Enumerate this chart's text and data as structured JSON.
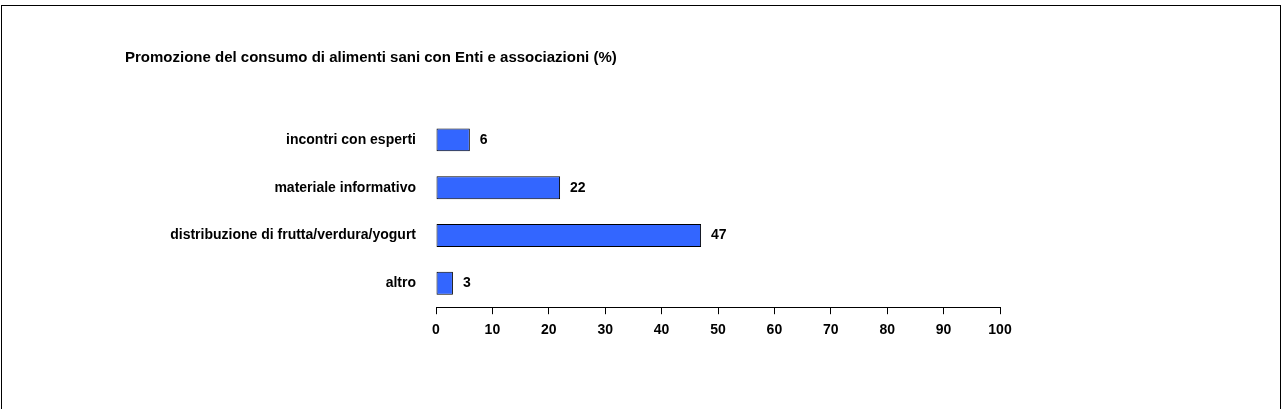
{
  "chart_data": {
    "type": "bar",
    "orientation": "horizontal",
    "title": "Promozione del consumo di alimenti sani con Enti e associazioni (%)",
    "categories": [
      "incontri con esperti",
      "materiale informativo",
      "distribuzione di frutta/verdura/yogurt",
      "altro"
    ],
    "values": [
      6,
      22,
      47,
      3
    ],
    "color": "#3366ff",
    "xlim": [
      0,
      100
    ],
    "xticks": [
      0,
      10,
      20,
      30,
      40,
      50,
      60,
      70,
      80,
      90,
      100
    ],
    "grid": false,
    "data_labels": true,
    "legend": false
  }
}
